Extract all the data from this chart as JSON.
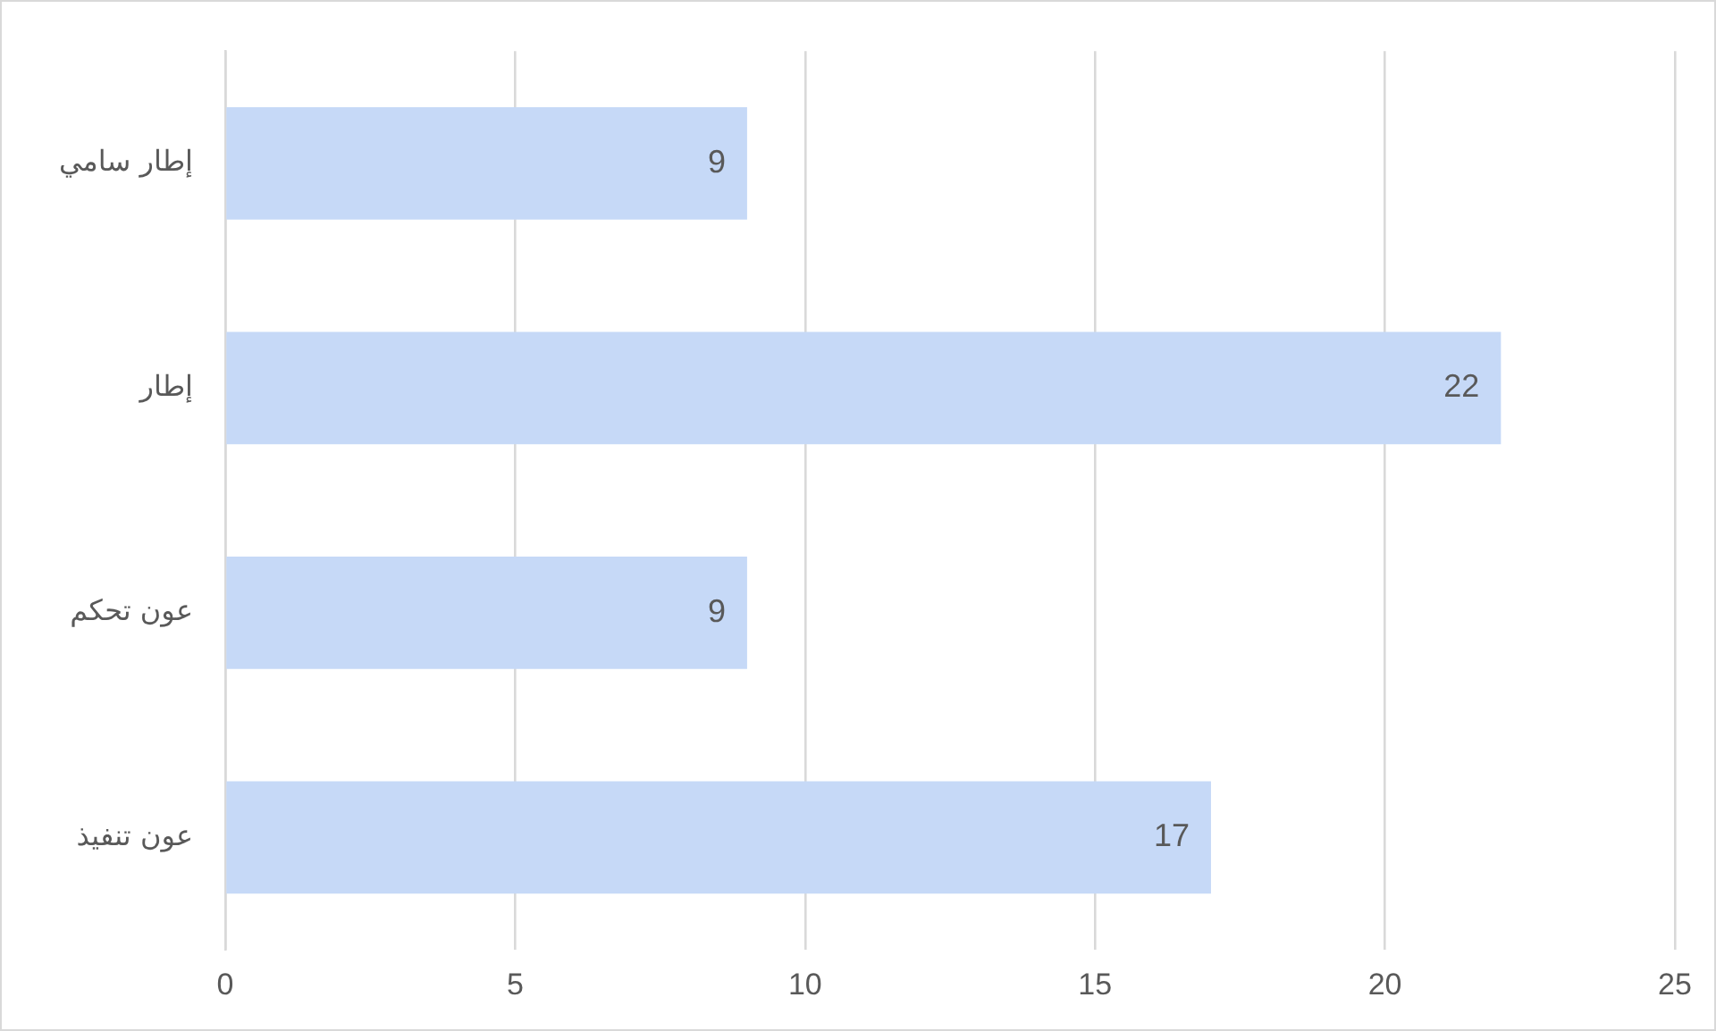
{
  "chart_data": {
    "type": "bar",
    "orientation": "horizontal",
    "categories": [
      "إطار سامي",
      "إطار",
      "عون تحكم",
      "عون تنفيذ"
    ],
    "values": [
      9,
      22,
      9,
      17
    ],
    "color": "#c6d9f7",
    "xlim": [
      0,
      25
    ],
    "xticks": [
      0,
      5,
      10,
      15,
      20,
      25
    ],
    "grid": "x",
    "data_labels": true
  }
}
